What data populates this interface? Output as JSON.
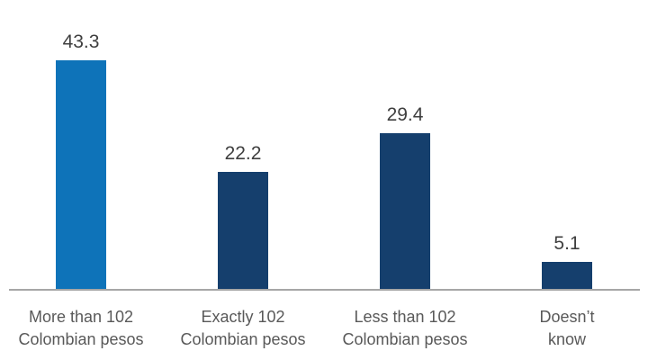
{
  "chart_data": {
    "type": "bar",
    "categories": [
      "More than 102\nColombian pesos",
      "Exactly 102\nColombian pesos",
      "Less than 102\nColombian pesos",
      "Doesn’t\nknow"
    ],
    "values": [
      43.3,
      22.2,
      29.4,
      5.1
    ],
    "value_labels": [
      "43.3",
      "22.2",
      "29.4",
      "5.1"
    ],
    "bar_colors": [
      "#0e73b9",
      "#153f6d",
      "#153f6d",
      "#153f6d"
    ],
    "title": "",
    "xlabel": "",
    "ylabel": "",
    "ylim": [
      0,
      55
    ],
    "grid": false,
    "legend": false,
    "layout_hints": {
      "orientation": "vertical",
      "value_labels_position": "above-bars",
      "baseline_axis_only": true
    }
  },
  "colors": {
    "bar_highlight": "#0e73b9",
    "bar_default": "#153f6d",
    "axis_line": "#a6a6a6",
    "value_label_text": "#3f3f3f",
    "category_label_text": "#595959",
    "background": "#ffffff"
  }
}
